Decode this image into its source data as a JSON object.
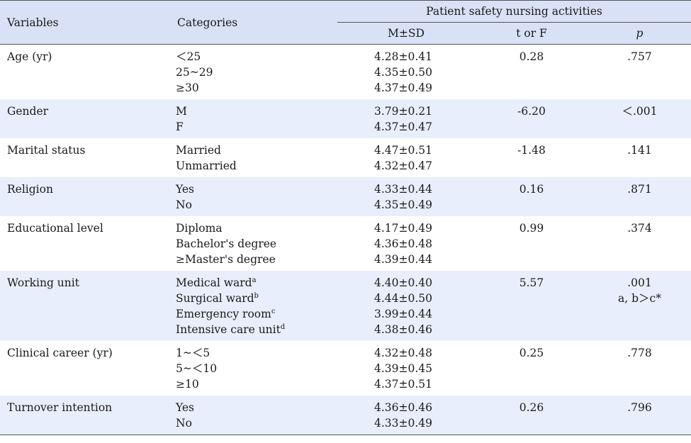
{
  "header": {
    "variables": "Variables",
    "categories": "Categories",
    "group": "Patient safety nursing activities",
    "ms": "M±SD",
    "t": "t or F",
    "p": "p"
  },
  "rows": [
    {
      "variable": "Age (yr)",
      "categories": [
        {
          "text": "＜25"
        },
        {
          "text": "25~29"
        },
        {
          "text": "≥30"
        }
      ],
      "ms": [
        "4.28±0.41",
        "4.35±0.50",
        "4.37±0.49"
      ],
      "t": "0.28",
      "p": [
        ".757"
      ]
    },
    {
      "variable": "Gender",
      "categories": [
        {
          "text": "M"
        },
        {
          "text": "F"
        }
      ],
      "ms": [
        "3.79±0.21",
        "4.37±0.47"
      ],
      "t": "-6.20",
      "p": [
        "＜.001"
      ]
    },
    {
      "variable": "Marital status",
      "categories": [
        {
          "text": "Married"
        },
        {
          "text": "Unmarried"
        }
      ],
      "ms": [
        "4.47±0.51",
        "4.32±0.47"
      ],
      "t": "-1.48",
      "p": [
        ".141"
      ]
    },
    {
      "variable": "Religion",
      "categories": [
        {
          "text": "Yes"
        },
        {
          "text": "No"
        }
      ],
      "ms": [
        "4.33±0.44",
        "4.35±0.49"
      ],
      "t": "0.16",
      "p": [
        ".871"
      ]
    },
    {
      "variable": "Educational level",
      "categories": [
        {
          "text": "Diploma"
        },
        {
          "text": "Bachelor's degree"
        },
        {
          "text": "≥Master's degree"
        }
      ],
      "ms": [
        "4.17±0.49",
        "4.36±0.48",
        "4.39±0.44"
      ],
      "t": "0.99",
      "p": [
        ".374"
      ]
    },
    {
      "variable": "Working unit",
      "categories": [
        {
          "text": "Medical ward",
          "sup": "a"
        },
        {
          "text": "Surgical ward",
          "sup": "b"
        },
        {
          "text": "Emergency room",
          "sup": "c"
        },
        {
          "text": "Intensive care unit",
          "sup": "d"
        }
      ],
      "ms": [
        "4.40±0.40",
        "4.44±0.50",
        "3.99±0.44",
        "4.38±0.46"
      ],
      "t": "5.57",
      "p": [
        ".001",
        "a, b＞c*"
      ]
    },
    {
      "variable": "Clinical career (yr)",
      "categories": [
        {
          "text": "1~＜5"
        },
        {
          "text": "5~＜10"
        },
        {
          "text": "≥10"
        }
      ],
      "ms": [
        "4.32±0.48",
        "4.39±0.45",
        "4.37±0.51"
      ],
      "t": "0.25",
      "p": [
        ".778"
      ]
    },
    {
      "variable": "Turnover intention",
      "categories": [
        {
          "text": "Yes"
        },
        {
          "text": "No"
        }
      ],
      "ms": [
        "4.36±0.46",
        "4.33±0.49"
      ],
      "t": "0.26",
      "p": [
        ".796"
      ]
    }
  ]
}
